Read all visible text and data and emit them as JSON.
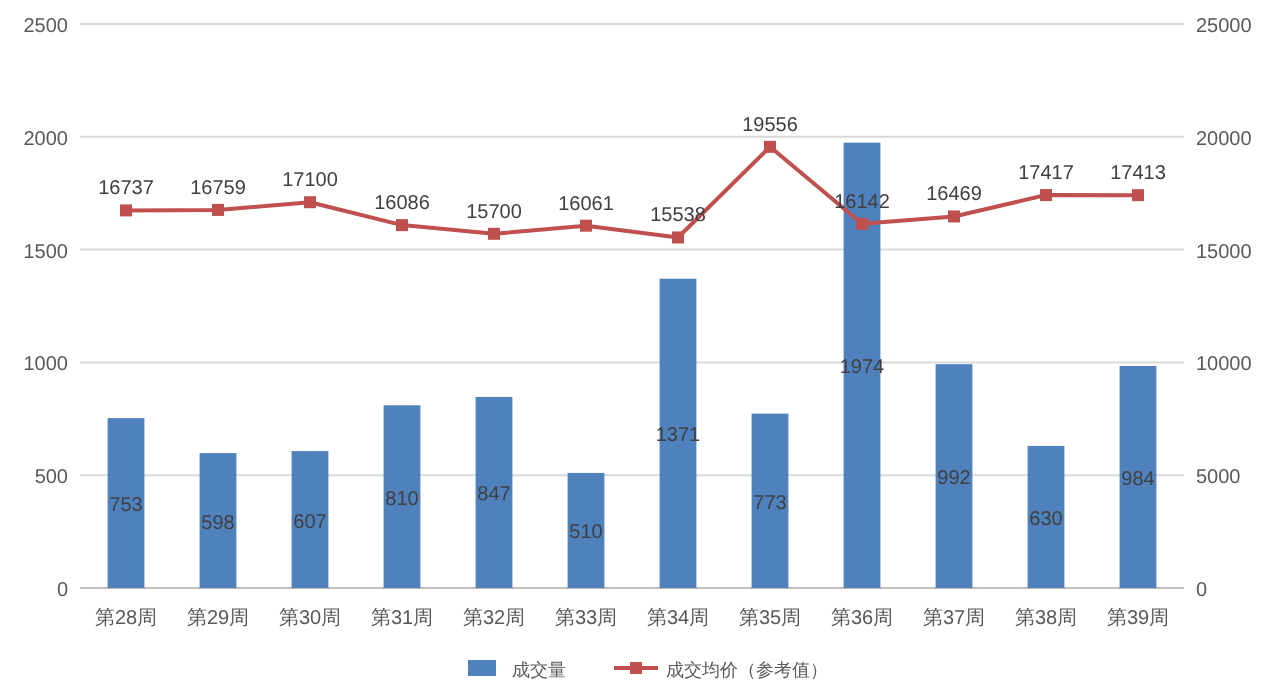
{
  "chart_data": {
    "type": "bar",
    "categories": [
      "第28周",
      "第29周",
      "第30周",
      "第31周",
      "第32周",
      "第33周",
      "第34周",
      "第35周",
      "第36周",
      "第37周",
      "第38周",
      "第39周"
    ],
    "series": [
      {
        "name": "成交量",
        "color": "#4f81bd",
        "values": [
          753,
          598,
          607,
          810,
          847,
          510,
          1371,
          773,
          1974,
          992,
          630,
          984
        ]
      },
      {
        "name": "成交均价（参考值）",
        "type": "line",
        "axis": "y2",
        "color": "#c0504d",
        "marker": "square",
        "values": [
          16737,
          16759,
          17100,
          16086,
          15700,
          16061,
          15538,
          19556,
          16142,
          16469,
          17417,
          17413
        ]
      }
    ],
    "ylim": [
      0,
      2500
    ],
    "yticks": [
      0,
      500,
      1000,
      1500,
      2000,
      2500
    ],
    "y2lim": [
      0,
      25000
    ],
    "y2ticks": [
      0,
      5000,
      10000,
      15000,
      20000,
      25000
    ],
    "grid": "y",
    "legend": "bottom",
    "data_labels": true
  }
}
